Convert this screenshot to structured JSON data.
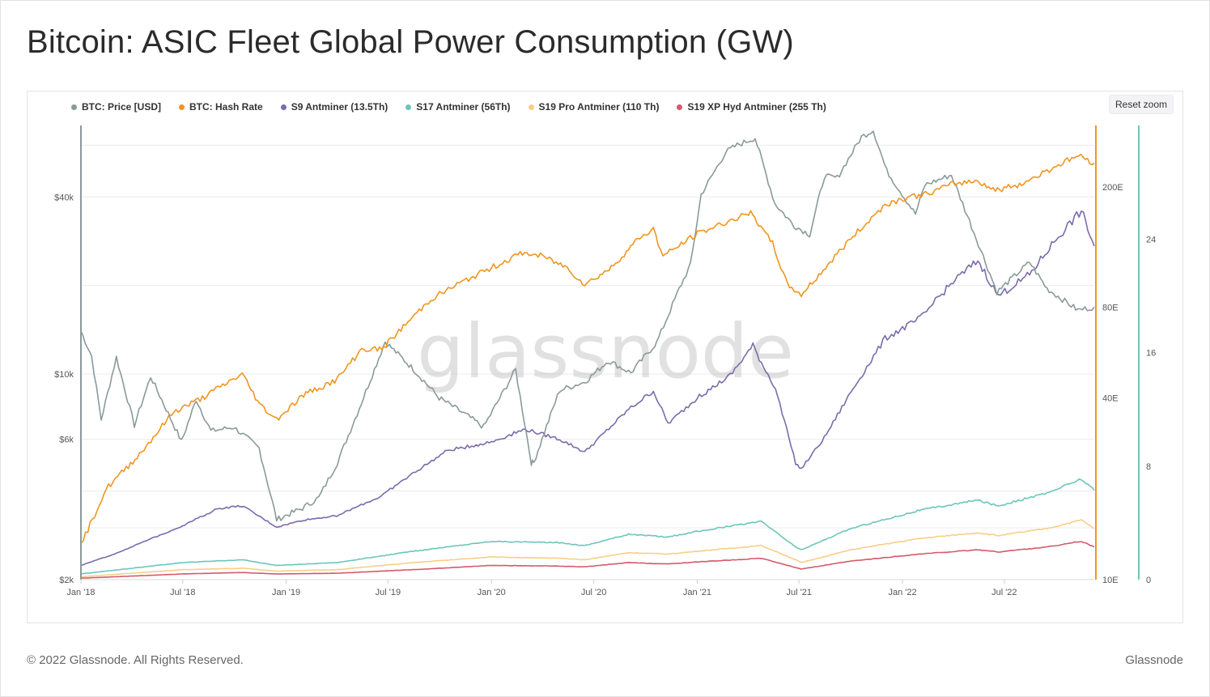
{
  "title": "Bitcoin: ASIC Fleet Global Power Consumption (GW)",
  "reset_zoom_label": "Reset zoom",
  "watermark": "glassnode",
  "footer": {
    "copyright": "© 2022 Glassnode. All Rights Reserved.",
    "brand": "Glassnode"
  },
  "legend": [
    {
      "label": "BTC: Price [USD]",
      "color": "#8a9a9a"
    },
    {
      "label": "BTC: Hash Rate",
      "color": "#f0951f"
    },
    {
      "label": "S9 Antminer (13.5Th)",
      "color": "#7a6cab"
    },
    {
      "label": "S17 Antminer (56Th)",
      "color": "#6cc6b8"
    },
    {
      "label": "S19 Pro Antminer (110 Th)",
      "color": "#f7cf86"
    },
    {
      "label": "S19 XP Hyd Antminer (255 Th)",
      "color": "#d45a6a"
    }
  ],
  "chart_data": {
    "type": "line",
    "x_axis": {
      "type": "date",
      "range": [
        "2018-01-01",
        "2022-12-08"
      ],
      "tick_labels": [
        "Jan '18",
        "Jul '18",
        "Jan '19",
        "Jul '19",
        "Jan '20",
        "Jul '20",
        "Jan '21",
        "Jul '21",
        "Jan '22",
        "Jul '22"
      ]
    },
    "y_axes": {
      "price": {
        "position": "left",
        "scale": "log",
        "unit": "USD",
        "range": [
          2000,
          70000
        ],
        "tick_labels": [
          "$2k",
          "$6k",
          "$10k",
          "$40k"
        ],
        "tick_values": [
          2000,
          6000,
          10000,
          40000
        ]
      },
      "hash_rate": {
        "position": "right",
        "scale": "log",
        "unit": "EH/s",
        "range": [
          10,
          320
        ],
        "tick_labels": [
          "10E",
          "40E",
          "80E",
          "200E"
        ],
        "tick_values": [
          10,
          40,
          80,
          200
        ],
        "color": "#f0951f"
      },
      "power": {
        "position": "right",
        "scale": "linear",
        "unit": "GW",
        "range": [
          0,
          32
        ],
        "tick_labels": [
          "0",
          "8",
          "16",
          "24"
        ],
        "tick_values": [
          0,
          8,
          16,
          24
        ],
        "color": "#6cc6b8"
      }
    },
    "series": [
      {
        "name": "BTC: Price [USD]",
        "axis": "price",
        "color": "#8a9a9a",
        "x": [
          "2018-01-01",
          "2018-01-20",
          "2018-02-06",
          "2018-03-05",
          "2018-04-06",
          "2018-05-05",
          "2018-06-29",
          "2018-07-25",
          "2018-08-20",
          "2018-09-30",
          "2018-11-14",
          "2018-12-15",
          "2019-01-30",
          "2019-02-28",
          "2019-04-02",
          "2019-05-15",
          "2019-06-26",
          "2019-08-15",
          "2019-09-30",
          "2019-11-25",
          "2019-12-18",
          "2020-02-13",
          "2020-03-12",
          "2020-03-16",
          "2020-05-01",
          "2020-06-15",
          "2020-07-27",
          "2020-09-05",
          "2020-10-21",
          "2020-11-30",
          "2020-12-20",
          "2021-01-08",
          "2021-02-21",
          "2021-03-13",
          "2021-04-14",
          "2021-05-19",
          "2021-06-22",
          "2021-07-20",
          "2021-08-15",
          "2021-09-07",
          "2021-10-20",
          "2021-11-10",
          "2021-12-04",
          "2022-01-24",
          "2022-02-10",
          "2022-03-29",
          "2022-05-12",
          "2022-06-18",
          "2022-08-15",
          "2022-09-15",
          "2022-11-09",
          "2022-12-08"
        ],
        "values": [
          14000,
          11500,
          7000,
          11400,
          6700,
          9800,
          5900,
          8200,
          6400,
          6600,
          5600,
          3200,
          3500,
          3800,
          5000,
          8000,
          12900,
          10400,
          8300,
          7100,
          6600,
          10350,
          5000,
          5000,
          8800,
          9400,
          11100,
          10100,
          12800,
          19500,
          23500,
          40800,
          57000,
          60000,
          63500,
          38000,
          32000,
          29800,
          47000,
          46500,
          64000,
          67500,
          49000,
          35000,
          44000,
          47500,
          29000,
          19000,
          24000,
          19500,
          16500,
          16900
        ]
      },
      {
        "name": "BTC: Hash Rate",
        "axis": "hash_rate",
        "color": "#f0951f",
        "x": [
          "2018-01-01",
          "2018-02-15",
          "2018-04-15",
          "2018-06-15",
          "2018-08-05",
          "2018-09-10",
          "2018-10-15",
          "2018-11-15",
          "2018-12-15",
          "2019-02-01",
          "2019-04-01",
          "2019-05-15",
          "2019-06-20",
          "2019-08-01",
          "2019-09-15",
          "2019-11-01",
          "2020-01-01",
          "2020-02-25",
          "2020-04-01",
          "2020-05-15",
          "2020-06-15",
          "2020-08-01",
          "2020-09-20",
          "2020-10-15",
          "2020-11-01",
          "2021-01-01",
          "2021-03-01",
          "2021-04-10",
          "2021-04-20",
          "2021-05-15",
          "2021-06-10",
          "2021-07-05",
          "2021-08-01",
          "2021-10-01",
          "2021-12-01",
          "2022-01-10",
          "2022-02-15",
          "2022-04-01",
          "2022-05-15",
          "2022-06-15",
          "2022-08-01",
          "2022-10-01",
          "2022-11-10",
          "2022-12-08"
        ],
        "values": [
          13,
          20,
          26,
          36,
          40,
          44,
          48,
          38,
          34,
          41,
          46,
          58,
          58,
          70,
          85,
          95,
          108,
          121,
          118,
          108,
          95,
          108,
          136,
          145,
          118,
          140,
          155,
          165,
          150,
          130,
          95,
          88,
          100,
          135,
          175,
          185,
          190,
          205,
          210,
          195,
          205,
          235,
          255,
          240
        ]
      },
      {
        "name": "S9 Antminer (13.5Th)",
        "axis": "power",
        "color": "#7a6cab",
        "x": [
          "2018-01-01",
          "2018-03-01",
          "2018-05-01",
          "2018-07-01",
          "2018-09-01",
          "2018-10-15",
          "2018-12-15",
          "2019-02-01",
          "2019-04-01",
          "2019-06-15",
          "2019-08-15",
          "2019-10-15",
          "2020-01-01",
          "2020-03-01",
          "2020-05-01",
          "2020-06-15",
          "2020-09-01",
          "2020-10-15",
          "2020-11-10",
          "2021-01-01",
          "2021-03-01",
          "2021-04-10",
          "2021-04-25",
          "2021-05-20",
          "2021-06-25",
          "2021-07-05",
          "2021-08-15",
          "2021-10-01",
          "2021-12-01",
          "2022-02-01",
          "2022-04-01",
          "2022-05-15",
          "2022-06-20",
          "2022-08-15",
          "2022-10-01",
          "2022-11-15",
          "2022-12-08"
        ],
        "values": [
          1.0,
          1.8,
          2.8,
          3.8,
          5.0,
          5.2,
          3.7,
          4.2,
          4.5,
          5.8,
          7.5,
          9.1,
          9.7,
          10.6,
          9.9,
          9.0,
          12.0,
          13.3,
          11.0,
          12.8,
          14.4,
          16.5,
          15.3,
          13.5,
          8.2,
          7.8,
          10.0,
          13.2,
          17.0,
          18.4,
          21.0,
          22.5,
          20.0,
          21.5,
          24.0,
          26.0,
          23.5
        ]
      },
      {
        "name": "S17 Antminer (56Th)",
        "axis": "power",
        "color": "#6cc6b8",
        "x": [
          "2018-01-01",
          "2018-07-01",
          "2018-10-15",
          "2018-12-15",
          "2019-04-01",
          "2019-08-15",
          "2020-01-01",
          "2020-05-01",
          "2020-06-15",
          "2020-09-01",
          "2020-11-10",
          "2021-01-01",
          "2021-04-25",
          "2021-06-25",
          "2021-07-05",
          "2021-10-01",
          "2022-02-01",
          "2022-05-15",
          "2022-06-20",
          "2022-09-15",
          "2022-11-15",
          "2022-12-08"
        ],
        "values": [
          0.4,
          1.2,
          1.4,
          1.0,
          1.2,
          2.0,
          2.7,
          2.6,
          2.4,
          3.2,
          3.0,
          3.4,
          4.1,
          2.3,
          2.1,
          3.6,
          4.9,
          5.6,
          5.2,
          6.1,
          7.1,
          6.3
        ]
      },
      {
        "name": "S19 Pro Antminer (110 Th)",
        "axis": "power",
        "color": "#f7cf86",
        "x": [
          "2018-01-01",
          "2018-07-01",
          "2018-10-15",
          "2018-12-15",
          "2019-04-01",
          "2019-08-15",
          "2020-01-01",
          "2020-05-01",
          "2020-06-15",
          "2020-09-01",
          "2020-11-10",
          "2021-01-01",
          "2021-04-25",
          "2021-06-25",
          "2021-07-05",
          "2021-10-01",
          "2022-02-01",
          "2022-05-15",
          "2022-06-20",
          "2022-09-15",
          "2022-11-15",
          "2022-12-08"
        ],
        "values": [
          0.2,
          0.7,
          0.8,
          0.6,
          0.7,
          1.2,
          1.6,
          1.5,
          1.4,
          1.9,
          1.8,
          2.0,
          2.4,
          1.4,
          1.2,
          2.1,
          2.9,
          3.3,
          3.1,
          3.6,
          4.2,
          3.6
        ]
      },
      {
        "name": "S19 XP Hyd Antminer (255 Th)",
        "axis": "power",
        "color": "#d45a6a",
        "x": [
          "2018-01-01",
          "2018-07-01",
          "2018-10-15",
          "2018-12-15",
          "2019-04-01",
          "2019-08-15",
          "2020-01-01",
          "2020-05-01",
          "2020-06-15",
          "2020-09-01",
          "2020-11-10",
          "2021-01-01",
          "2021-04-25",
          "2021-06-25",
          "2021-07-05",
          "2021-10-01",
          "2022-02-01",
          "2022-05-15",
          "2022-06-20",
          "2022-09-15",
          "2022-11-15",
          "2022-12-08"
        ],
        "values": [
          0.1,
          0.4,
          0.5,
          0.4,
          0.45,
          0.7,
          1.0,
          0.95,
          0.9,
          1.2,
          1.1,
          1.25,
          1.5,
          0.85,
          0.75,
          1.3,
          1.8,
          2.1,
          1.95,
          2.3,
          2.7,
          2.3
        ]
      }
    ],
    "grid": true,
    "legend_position": "top-left"
  }
}
